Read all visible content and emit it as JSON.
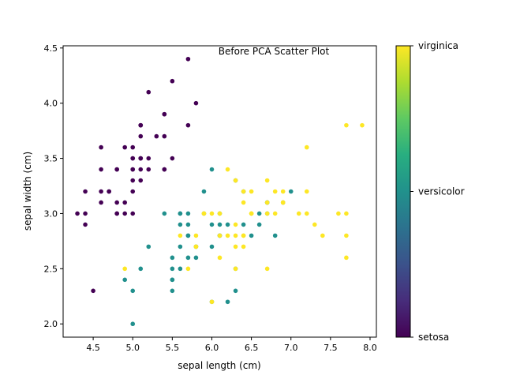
{
  "chart_data": {
    "type": "scatter",
    "title": "Before PCA Scatter Plot",
    "xlabel": "sepal length (cm)",
    "ylabel": "sepal width (cm)",
    "xlim": [
      4.12,
      8.08
    ],
    "ylim": [
      1.88,
      4.52
    ],
    "xticks": [
      "4.5",
      "5.0",
      "5.5",
      "6.0",
      "6.5",
      "7.0",
      "7.5",
      "8.0"
    ],
    "yticks": [
      "2.0",
      "2.5",
      "3.0",
      "3.5",
      "4.0",
      "4.5"
    ],
    "grid": false,
    "colorbar": {
      "colormap": "viridis",
      "labels": [
        "setosa",
        "versicolor",
        "virginica"
      ],
      "colors": [
        "#440154",
        "#21908d",
        "#fde725"
      ]
    },
    "series": [
      {
        "class": 0,
        "color": "#440154",
        "x": [
          4.3,
          4.4,
          4.4,
          4.4,
          4.5,
          4.6,
          4.6,
          4.6,
          4.6,
          4.7,
          4.7,
          4.8,
          4.8,
          4.8,
          4.8,
          4.8,
          4.9,
          4.9,
          4.9,
          5.0,
          5.0,
          5.0,
          5.0,
          5.0,
          5.0,
          5.0,
          5.0,
          5.1,
          5.1,
          5.1,
          5.1,
          5.1,
          5.1,
          5.1,
          5.1,
          5.2,
          5.2,
          5.2,
          5.3,
          5.4,
          5.4,
          5.4,
          5.4,
          5.4,
          5.5,
          5.5,
          5.7,
          5.7,
          5.8,
          5.1
        ],
        "y": [
          3.0,
          2.9,
          3.0,
          3.2,
          2.3,
          3.1,
          3.2,
          3.4,
          3.6,
          3.2,
          3.2,
          3.0,
          3.0,
          3.1,
          3.4,
          3.4,
          3.0,
          3.1,
          3.6,
          3.0,
          3.2,
          3.3,
          3.4,
          3.4,
          3.5,
          3.5,
          3.6,
          3.3,
          3.4,
          3.5,
          3.5,
          3.7,
          3.8,
          3.8,
          3.8,
          3.4,
          3.5,
          4.1,
          3.7,
          3.4,
          3.4,
          3.7,
          3.9,
          3.9,
          3.5,
          4.2,
          3.8,
          4.4,
          4.0,
          3.5
        ]
      },
      {
        "class": 1,
        "color": "#21908d",
        "x": [
          4.9,
          5.0,
          5.0,
          5.1,
          5.2,
          5.4,
          5.5,
          5.5,
          5.5,
          5.5,
          5.5,
          5.6,
          5.6,
          5.6,
          5.6,
          5.6,
          5.7,
          5.7,
          5.7,
          5.7,
          5.7,
          5.8,
          5.8,
          5.8,
          5.9,
          5.9,
          6.0,
          6.0,
          6.0,
          6.0,
          6.1,
          6.1,
          6.1,
          6.1,
          6.2,
          6.2,
          6.3,
          6.3,
          6.3,
          6.4,
          6.4,
          6.5,
          6.6,
          6.6,
          6.7,
          6.7,
          6.7,
          6.8,
          6.9,
          7.0
        ],
        "y": [
          2.4,
          2.0,
          2.3,
          2.5,
          2.7,
          3.0,
          2.3,
          2.4,
          2.4,
          2.5,
          2.6,
          2.5,
          2.7,
          2.9,
          3.0,
          3.0,
          2.6,
          2.8,
          2.8,
          2.9,
          3.0,
          2.6,
          2.7,
          2.7,
          3.0,
          3.2,
          2.2,
          2.7,
          2.9,
          3.4,
          2.8,
          2.8,
          2.9,
          3.0,
          2.2,
          2.9,
          2.3,
          2.5,
          3.3,
          2.9,
          3.2,
          2.8,
          2.9,
          3.0,
          3.0,
          3.1,
          3.1,
          2.8,
          3.1,
          3.2
        ]
      },
      {
        "class": 2,
        "color": "#fde725",
        "x": [
          4.9,
          5.6,
          5.7,
          5.8,
          5.8,
          5.8,
          5.9,
          6.0,
          6.0,
          6.1,
          6.1,
          6.2,
          6.2,
          6.3,
          6.3,
          6.3,
          6.3,
          6.3,
          6.4,
          6.4,
          6.4,
          6.4,
          6.5,
          6.5,
          6.5,
          6.5,
          6.7,
          6.7,
          6.7,
          6.7,
          6.8,
          6.8,
          6.9,
          6.9,
          6.9,
          7.1,
          7.2,
          7.2,
          7.2,
          7.3,
          7.4,
          7.6,
          7.7,
          7.7,
          7.7,
          7.7,
          7.9,
          6.1,
          6.4,
          5.9
        ],
        "y": [
          2.5,
          2.8,
          2.5,
          2.7,
          2.7,
          2.8,
          3.0,
          2.2,
          3.0,
          2.6,
          3.0,
          2.8,
          3.4,
          2.5,
          2.7,
          2.8,
          2.9,
          3.3,
          2.7,
          2.8,
          3.1,
          3.2,
          3.0,
          3.0,
          3.0,
          3.2,
          2.5,
          3.0,
          3.1,
          3.3,
          3.0,
          3.2,
          3.1,
          3.1,
          3.2,
          3.0,
          3.0,
          3.2,
          3.6,
          2.9,
          2.8,
          3.0,
          2.6,
          2.8,
          3.0,
          3.8,
          3.8,
          2.8,
          2.8,
          3.0
        ]
      }
    ]
  }
}
